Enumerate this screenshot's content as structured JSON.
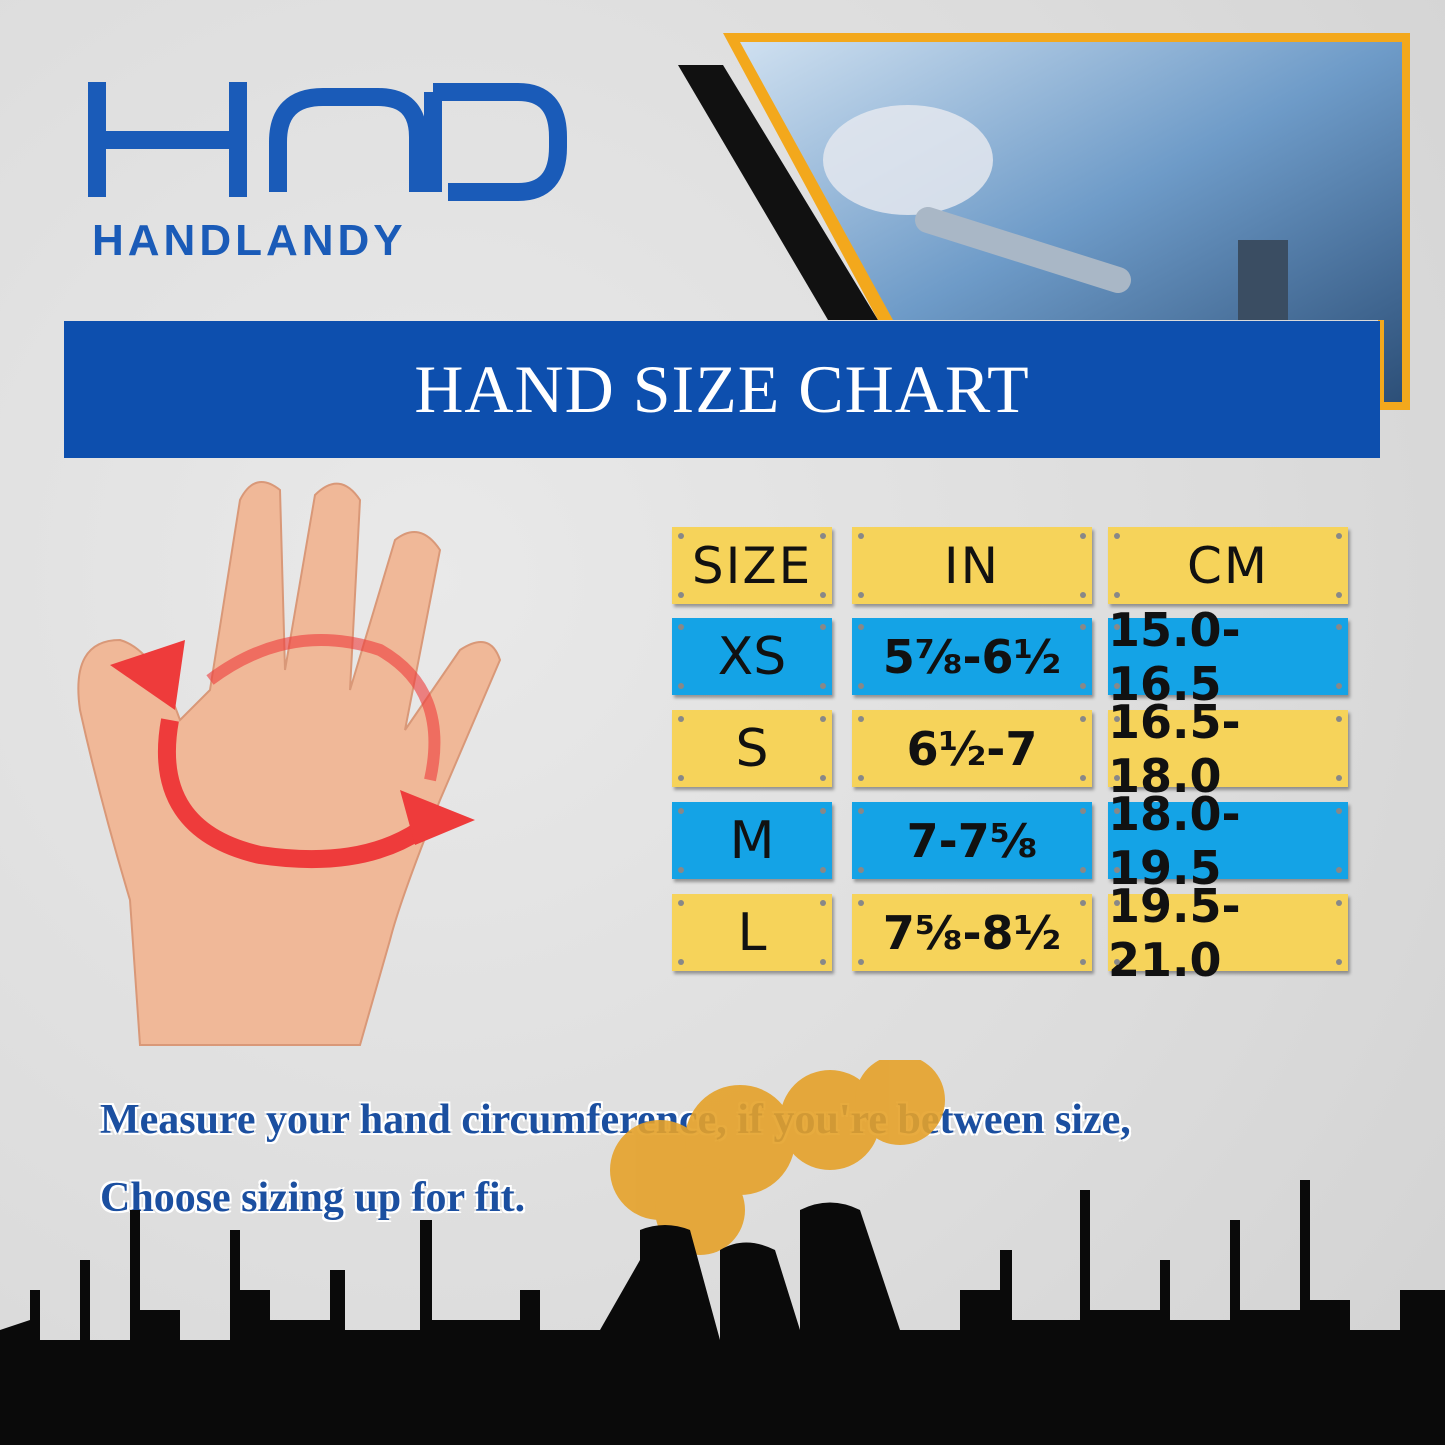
{
  "brand": {
    "name": "HANDLANDY",
    "logo_mark": "HCD",
    "color": "#1a5bb8"
  },
  "banner": {
    "title": "HAND SIZE CHART",
    "color": "#0d4fae"
  },
  "table": {
    "headers": [
      "SIZE",
      "IN",
      "CM"
    ],
    "rows": [
      {
        "size": "XS",
        "in": "5⅞-6½",
        "cm": "15.0-16.5"
      },
      {
        "size": "S",
        "in": "6½-7",
        "cm": "16.5-18.0"
      },
      {
        "size": "M",
        "in": "7-7⅝",
        "cm": "18.0-19.5"
      },
      {
        "size": "L",
        "in": "7⅝-8½",
        "cm": "19.5-21.0"
      }
    ],
    "colors": {
      "yellow": "#f6d35a",
      "blue": "#14a3e6"
    }
  },
  "note": {
    "line1": "Measure your hand circumference, if you're between size,",
    "line2": "Choose sizing up for fit."
  },
  "icons": [
    "hand-measure-illustration",
    "circular-arrow-icon",
    "worker-photo",
    "factory-skyline"
  ]
}
